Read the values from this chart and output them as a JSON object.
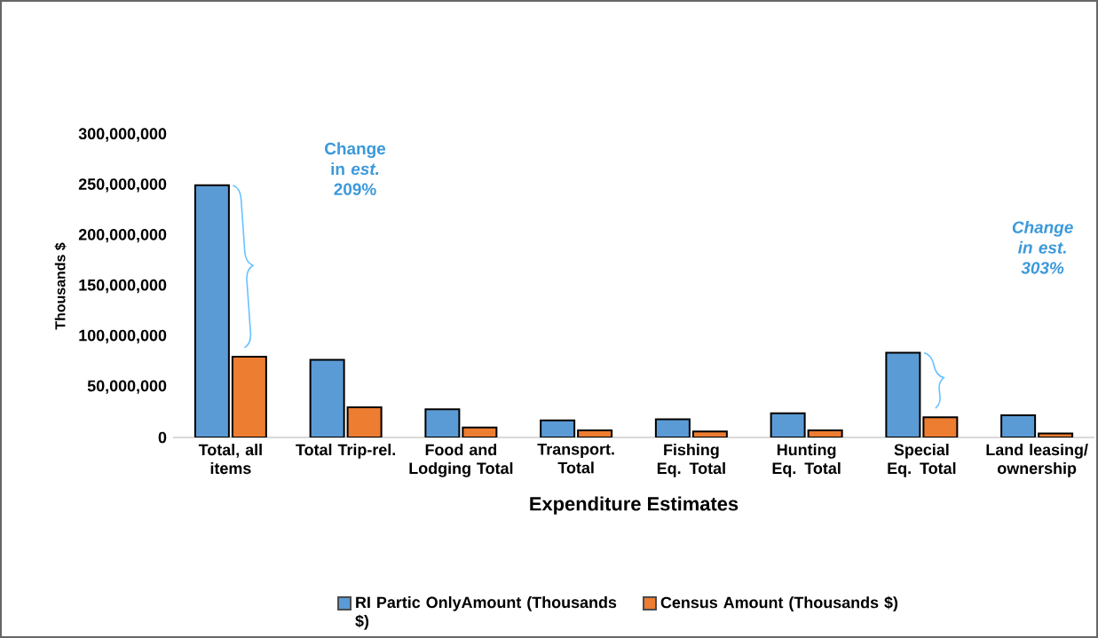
{
  "chart_data": {
    "type": "bar",
    "xlabel": "Expenditure Estimates",
    "ylabel": "Thousands $",
    "categories": [
      "Total, all items",
      "Total Trip-rel.",
      "Food and Lodging Total",
      "Transport. Total",
      "Fishing Eq. Total",
      "Hunting Eq. Total",
      "Special Eq. Total",
      "Land leasing/ ownership"
    ],
    "series": [
      {
        "name": "RI Partic OnlyAmount (Thousands $)",
        "color": "#5b9bd5",
        "values": [
          250000000,
          77000000,
          28000000,
          17000000,
          18000000,
          24000000,
          84000000,
          22000000
        ]
      },
      {
        "name": "Census Amount (Thousands $)",
        "color": "#ed7d31",
        "values": [
          80000000,
          30000000,
          10000000,
          7000000,
          6000000,
          7000000,
          20000000,
          4000000
        ]
      }
    ],
    "ylim": [
      0,
      300000000
    ],
    "yticks": [
      {
        "value": 0,
        "label": "0"
      },
      {
        "value": 50000000,
        "label": "50,000,000"
      },
      {
        "value": 100000000,
        "label": "100,000,000"
      },
      {
        "value": 150000000,
        "label": "150,000,000"
      },
      {
        "value": 200000000,
        "label": "200,000,000"
      },
      {
        "value": 250000000,
        "label": "250,000,000"
      },
      {
        "value": 300000000,
        "label": "300,000,000"
      }
    ],
    "annotations": [
      "Change in *est.* 209%",
      "Change in est. 303%"
    ],
    "legend": "bottom",
    "grid": false
  }
}
